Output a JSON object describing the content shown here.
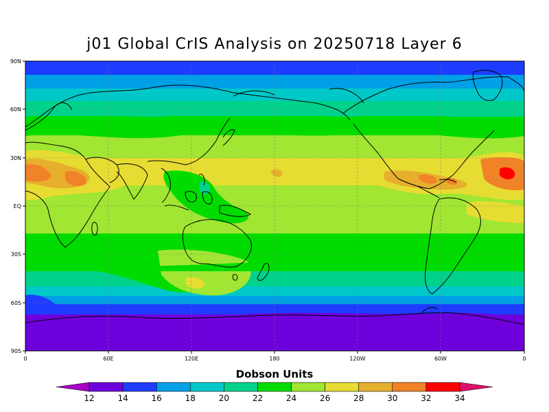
{
  "title": "j01 Global CrIS Analysis on 20250718 Layer 6",
  "colorbar": {
    "label": "Dobson Units",
    "ticks": [
      "12",
      "14",
      "16",
      "18",
      "20",
      "22",
      "24",
      "26",
      "28",
      "30",
      "32",
      "34"
    ],
    "under_color": "#a800c8",
    "over_color": "#e0106a",
    "colors": [
      "#6e00dc",
      "#1e3cff",
      "#00a0e6",
      "#00c8c8",
      "#00d28c",
      "#00dc00",
      "#a0e632",
      "#e6dc32",
      "#e6af2d",
      "#f08228",
      "#ff0000"
    ]
  },
  "axes": {
    "lat_labels": [
      "90N",
      "60N",
      "30N",
      "EQ",
      "30S",
      "60S",
      "90S"
    ],
    "lon_labels": [
      "0",
      "60E",
      "120E",
      "180",
      "120W",
      "60W",
      "0"
    ]
  }
}
